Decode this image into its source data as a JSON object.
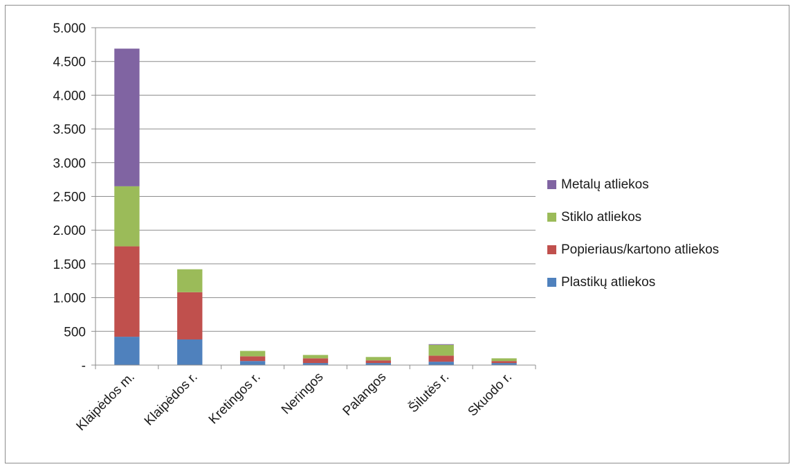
{
  "chart_data": {
    "type": "bar",
    "stacked": true,
    "title": "",
    "xlabel": "",
    "ylabel": "",
    "ylim": [
      0,
      5000
    ],
    "ytick_values": [
      0,
      500,
      1000,
      1500,
      2000,
      2500,
      3000,
      3500,
      4000,
      4500,
      5000
    ],
    "ytick_labels": [
      "-",
      "500",
      "1.000",
      "1.500",
      "2.000",
      "2.500",
      "3.000",
      "3.500",
      "4.000",
      "4.500",
      "5.000"
    ],
    "grid": true,
    "legend_position": "right",
    "categories": [
      "Klaipėdos m.",
      "Klaipėdos r.",
      "Kretingos r.",
      "Neringos",
      "Palangos",
      "Šilutės r.",
      "Skuodo r."
    ],
    "series": [
      {
        "name": "Plastikų atliekos",
        "color": "#4f81bd",
        "values": [
          420,
          380,
          60,
          30,
          30,
          50,
          30
        ]
      },
      {
        "name": "Popieriaus/kartono atliekos",
        "color": "#c0504d",
        "values": [
          1340,
          700,
          70,
          70,
          40,
          90,
          30
        ]
      },
      {
        "name": "Stiklo atliekos",
        "color": "#9bbb59",
        "values": [
          890,
          340,
          80,
          50,
          50,
          160,
          40
        ]
      },
      {
        "name": "Metalų atliekos",
        "color": "#8064a2",
        "values": [
          2040,
          0,
          0,
          0,
          0,
          10,
          0
        ]
      }
    ]
  }
}
